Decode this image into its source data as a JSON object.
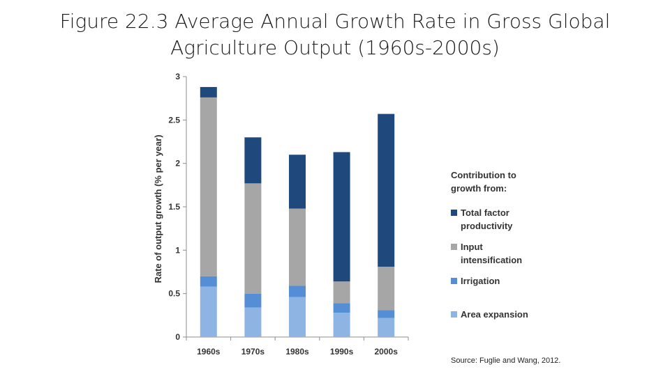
{
  "slide": {
    "title_line1": "Figure 22.3 Average Annual Growth Rate in Gross Global",
    "title_line2": "Agriculture Output (1960s-2000s)",
    "source": "Source: Fuglie and Wang, 2012."
  },
  "chart_data": {
    "type": "bar",
    "stacked": true,
    "categories": [
      "1960s",
      "1970s",
      "1980s",
      "1990s",
      "2000s"
    ],
    "series": [
      {
        "name": "Area expansion",
        "color": "#8db4e2",
        "values": [
          0.58,
          0.34,
          0.46,
          0.28,
          0.22
        ]
      },
      {
        "name": "Irrigation",
        "color": "#558ed5",
        "values": [
          0.12,
          0.16,
          0.13,
          0.11,
          0.09
        ]
      },
      {
        "name": "Input intensification",
        "color": "#a6a6a6",
        "values": [
          2.06,
          1.27,
          0.89,
          0.25,
          0.5
        ]
      },
      {
        "name": "Total factor productivity",
        "color": "#1f497d",
        "values": [
          0.12,
          0.53,
          0.62,
          1.49,
          1.76
        ]
      }
    ],
    "ylabel": "Rate of output growth (% per year)",
    "xlabel": "",
    "ylim": [
      0,
      3
    ],
    "yticks": [
      "0",
      "0.5",
      "1",
      "1.5",
      "2",
      "2.5",
      "3"
    ],
    "grid": false,
    "legend": {
      "title": "Contribution to growth from:",
      "placement": "right",
      "order": [
        "Total factor productivity",
        "Input intensification",
        "Irrigation",
        "Area expansion"
      ]
    }
  }
}
